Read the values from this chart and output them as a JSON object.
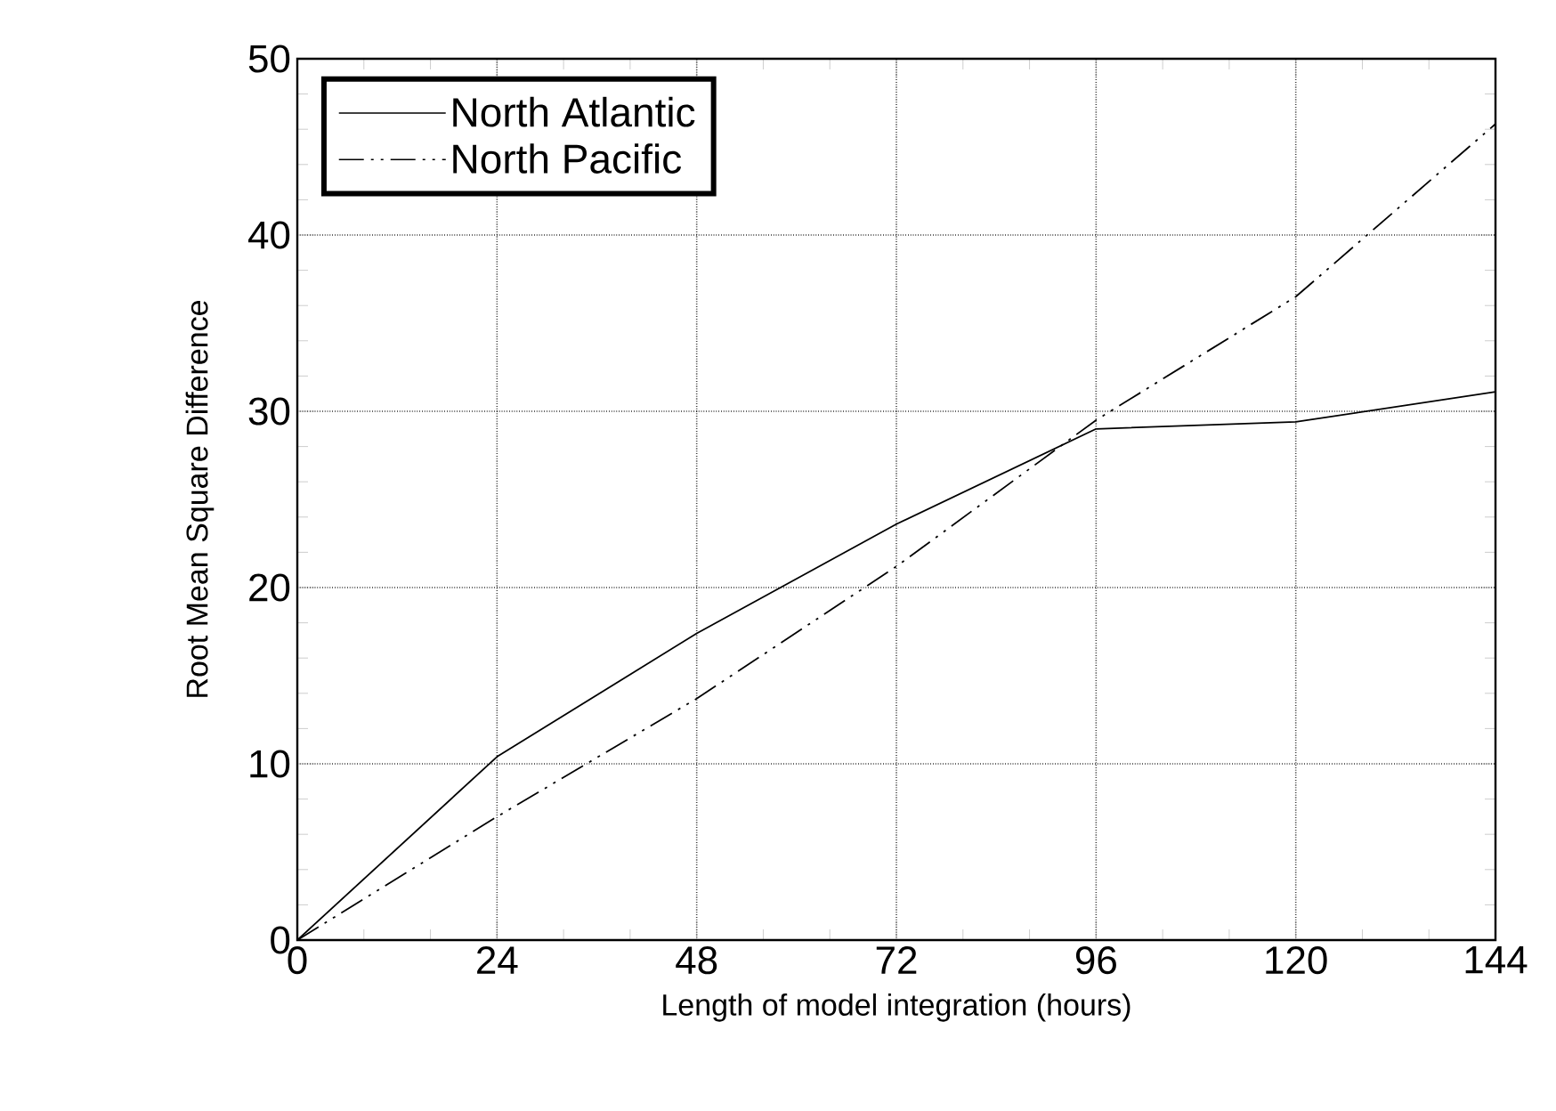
{
  "chart_data": {
    "type": "line",
    "xlabel": "Length of model integration (hours)",
    "ylabel": "Root Mean Square Difference",
    "x": [
      0,
      24,
      48,
      72,
      96,
      120,
      144
    ],
    "series": [
      {
        "name": "North  Atlantic",
        "color": "#000000",
        "line_style": "solid",
        "values": [
          0,
          10.4,
          17.4,
          23.6,
          29.0,
          29.4,
          31.1
        ]
      },
      {
        "name": "North  Pacific",
        "color": "#000000",
        "line_style": "dashdotdotted",
        "values": [
          0,
          7.0,
          13.7,
          21.2,
          29.5,
          36.5,
          46.3
        ]
      }
    ],
    "xlim": [
      0,
      144
    ],
    "ylim": [
      0,
      50
    ],
    "xticks": [
      0,
      24,
      48,
      72,
      96,
      120,
      144
    ],
    "yticks": [
      0,
      10,
      20,
      30,
      40,
      50
    ],
    "grid": true,
    "legend": "top left",
    "marker": "none"
  }
}
